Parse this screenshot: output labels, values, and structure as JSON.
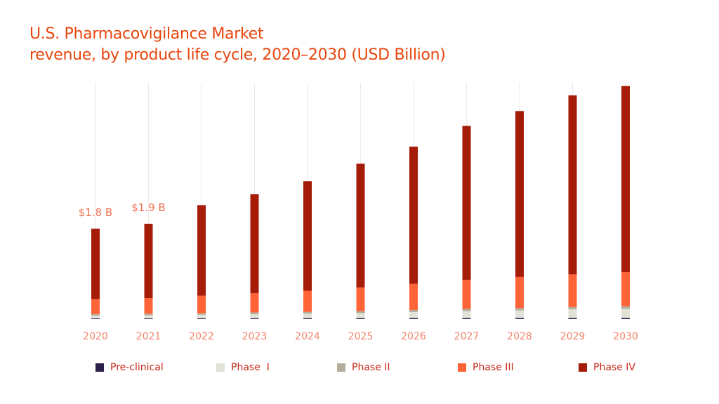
{
  "chart_data": {
    "type": "bar",
    "stacked": true,
    "title": "U.S. Pharmacovigilance Market",
    "subtitle": "revenue, by product life cycle, 2020–2030 (USD Billion)",
    "categories": [
      "2020",
      "2021",
      "2022",
      "2023",
      "2024",
      "2025",
      "2026",
      "2027",
      "2028",
      "2029",
      "2030"
    ],
    "series": [
      {
        "name": "Pre-clinical",
        "color": "#2a1f4a",
        "values": [
          0.015,
          0.016,
          0.017,
          0.018,
          0.019,
          0.02,
          0.021,
          0.022,
          0.023,
          0.024,
          0.025
        ]
      },
      {
        "name": "Phase  I",
        "color": "#e2e2d8",
        "values": [
          0.055,
          0.06,
          0.07,
          0.08,
          0.09,
          0.1,
          0.12,
          0.14,
          0.15,
          0.17,
          0.18
        ]
      },
      {
        "name": "Phase II",
        "color": "#b3ad9c",
        "values": [
          0.03,
          0.03,
          0.03,
          0.035,
          0.035,
          0.04,
          0.04,
          0.04,
          0.045,
          0.045,
          0.05
        ]
      },
      {
        "name": "Phase III",
        "color": "#ff6439",
        "values": [
          0.3,
          0.31,
          0.35,
          0.38,
          0.42,
          0.47,
          0.52,
          0.58,
          0.62,
          0.65,
          0.68
        ]
      },
      {
        "name": "Phase IV",
        "color": "#a51c08",
        "values": [
          1.4,
          1.48,
          1.8,
          1.97,
          2.18,
          2.46,
          2.73,
          3.06,
          3.3,
          3.56,
          3.7
        ]
      }
    ],
    "data_labels": [
      {
        "category": "2020",
        "text": "$1.8 B"
      },
      {
        "category": "2021",
        "text": "$1.9 B"
      }
    ],
    "ylim": [
      0,
      4.7
    ],
    "grid": false,
    "legend": "bottom",
    "colors": {
      "title": "#e8460e",
      "tick_labels": "#f0846a",
      "data_labels": "#f07156",
      "guide_lines": "#eeeae4"
    }
  }
}
